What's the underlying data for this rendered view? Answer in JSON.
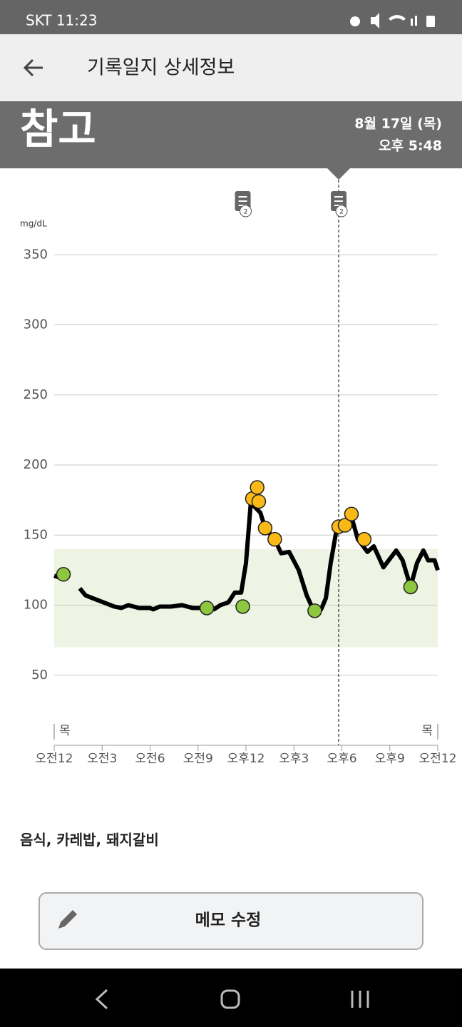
{
  "status_bar": {
    "text": "SKT 11:23"
  },
  "header": {
    "title": "기록일지 상세정보"
  },
  "banner": {
    "status": "참고",
    "date": "8월 17일 (목)",
    "time": "오후 5:48"
  },
  "chart_data": {
    "type": "line",
    "y_unit": "mg/dL",
    "xlim": [
      0,
      24
    ],
    "ylim": [
      0,
      370
    ],
    "xticks": [
      {
        "value": 0,
        "label": "오전12"
      },
      {
        "value": 3,
        "label": "오전3"
      },
      {
        "value": 6,
        "label": "오전6"
      },
      {
        "value": 9,
        "label": "오전9"
      },
      {
        "value": 12,
        "label": "오후12"
      },
      {
        "value": 15,
        "label": "오후3"
      },
      {
        "value": 18,
        "label": "오후6"
      },
      {
        "value": 21,
        "label": "오후9"
      },
      {
        "value": 24,
        "label": "오전12"
      }
    ],
    "yticks": [
      50,
      100,
      150,
      200,
      250,
      300,
      350
    ],
    "grid": true,
    "target_range": {
      "values": [
        70,
        140
      ],
      "color": "#eef4e3"
    },
    "day_labels": [
      {
        "x": 0,
        "label": "목"
      },
      {
        "x": 24,
        "label": "목"
      }
    ],
    "selected_x": 17.8,
    "memos": [
      {
        "x": 11.8,
        "label": "2"
      },
      {
        "x": 17.8,
        "label": "2"
      }
    ],
    "series": [
      {
        "style": "line",
        "color": "#000000",
        "x": [
          0,
          0.27,
          0.9,
          1.6,
          1.96,
          2.4,
          3.08,
          3.75,
          4.2,
          4.64,
          5.3,
          5.98,
          6.2,
          6.6,
          7.3,
          8.0,
          8.65,
          9.55,
          10.0,
          10.4,
          10.9,
          11.3,
          11.7,
          12.0,
          12.3,
          12.9,
          13.2,
          13.8,
          14.2,
          14.7,
          15.3,
          15.8,
          16.2,
          16.7,
          17.0,
          17.3,
          17.7,
          18.2,
          18.6,
          19.0,
          19.6,
          20.0,
          20.6,
          21.4,
          21.8,
          22.3,
          22.7,
          23.1,
          23.4,
          23.8,
          24
        ],
        "values": [
          121,
          120,
          null,
          112,
          107,
          105,
          102,
          99,
          98,
          100,
          98,
          98,
          97,
          99,
          99,
          100,
          98,
          98,
          97,
          100,
          102,
          109,
          109,
          130,
          173,
          166,
          155,
          147,
          137,
          138,
          125,
          107,
          97,
          97,
          105,
          130,
          156,
          159,
          163,
          147,
          138,
          142,
          127,
          139,
          132,
          113,
          130,
          139,
          132,
          132,
          125
        ]
      },
      {
        "style": "point",
        "color": "#8dc63f",
        "x": [
          0.58,
          9.55,
          11.8,
          16.3,
          22.3
        ],
        "values": [
          122,
          98,
          99,
          96,
          113
        ]
      },
      {
        "style": "point",
        "color": "#fbb917",
        "x": [
          12.4,
          12.7,
          12.8,
          13.2,
          13.8,
          17.8,
          18.2,
          18.6,
          19.4
        ],
        "values": [
          176,
          184,
          174,
          155,
          147,
          156,
          157,
          165,
          147
        ]
      }
    ]
  },
  "note": {
    "text": "음식, 카레밥, 돼지갈비"
  },
  "button": {
    "label": "메모 수정"
  }
}
